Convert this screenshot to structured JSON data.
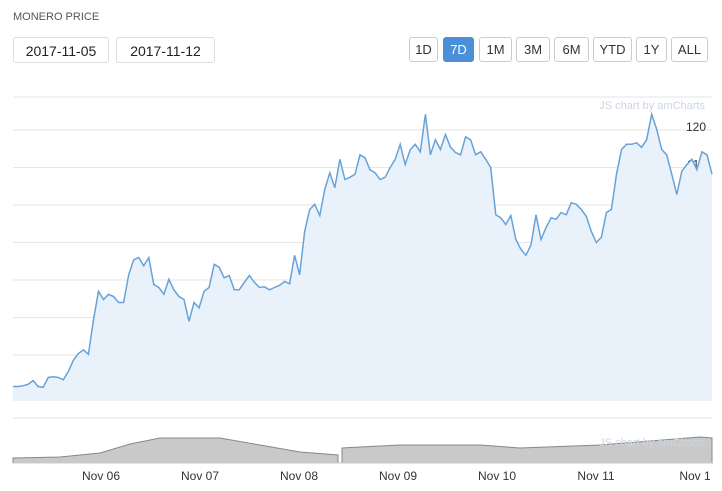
{
  "title": "MONERO PRICE",
  "date_inputs": [
    "2017-11-05",
    "2017-11-12"
  ],
  "range_buttons": [
    "1D",
    "7D",
    "1M",
    "3M",
    "6M",
    "YTD",
    "1Y",
    "ALL"
  ],
  "selected_index": 1,
  "credit": "JS chart by amCharts",
  "chart_data": {
    "type": "line",
    "color": "#67a2d8",
    "fill_color": "#e9f1fb",
    "x_axis_labels": [
      "Nov 06",
      "Nov 07",
      "Nov 08",
      "Nov 09",
      "Nov 10",
      "Nov 11",
      "Nov 1"
    ],
    "values": [
      85.8,
      85.8,
      85.9,
      86.1,
      86.6,
      85.8,
      85.7,
      87.0,
      87.1,
      87.0,
      86.7,
      87.8,
      89.3,
      90.2,
      90.7,
      90.1,
      94.7,
      98.5,
      97.4,
      98.1,
      97.8,
      97.0,
      97.0,
      100.7,
      102.7,
      103.0,
      101.9,
      103.0,
      99.4,
      99.0,
      98.1,
      100.1,
      98.7,
      97.8,
      97.4,
      94.5,
      97.0,
      96.3,
      98.5,
      99.0,
      102.1,
      101.7,
      100.3,
      100.6,
      98.7,
      98.7,
      99.7,
      100.6,
      99.7,
      99.0,
      99.1,
      98.7,
      99.0,
      99.3,
      99.8,
      99.5,
      103.3,
      100.7,
      106.5,
      109.4,
      110.1,
      108.6,
      112.1,
      114.3,
      112.3,
      116.1,
      113.4,
      113.7,
      114.1,
      116.7,
      116.3,
      114.7,
      114.3,
      113.4,
      113.7,
      115.0,
      116.1,
      118.1,
      115.4,
      117.4,
      118.1,
      117.1,
      122.1,
      116.7,
      118.7,
      117.4,
      119.4,
      117.7,
      117.0,
      116.7,
      119.1,
      118.7,
      116.7,
      117.1,
      116.1,
      115.0,
      108.7,
      108.3,
      107.4,
      108.6,
      105.4,
      104.1,
      103.3,
      104.7,
      108.7,
      105.4,
      107.0,
      108.3,
      108.1,
      109.0,
      108.7,
      110.3,
      110.1,
      109.4,
      108.5,
      106.5,
      105.0,
      105.7,
      109.0,
      109.4,
      114.1,
      117.4,
      118.1,
      118.1,
      118.3,
      117.7,
      118.7,
      122.1,
      120.1,
      117.4,
      116.7,
      114.1,
      111.4,
      114.5,
      115.4,
      116.1,
      114.7,
      117.1,
      116.7,
      114.1
    ],
    "ylim": [
      84,
      124.4
    ],
    "yticks": [
      85,
      90,
      95,
      100,
      105,
      110,
      115,
      120
    ],
    "grid": true
  }
}
